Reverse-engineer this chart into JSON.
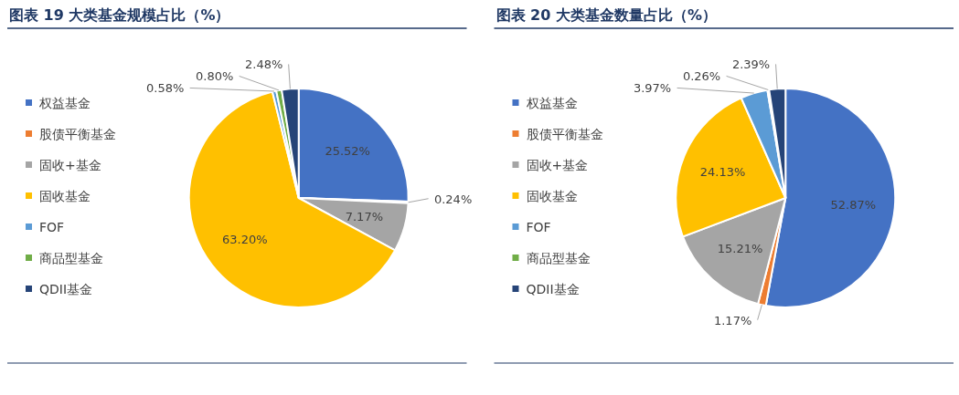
{
  "chart_data": [
    {
      "type": "pie",
      "title": "图表 19 大类基金规模占比（%）",
      "categories": [
        "权益基金",
        "股债平衡基金",
        "固收+基金",
        "固收基金",
        "FOF",
        "商品型基金",
        "QDII基金"
      ],
      "values": [
        25.52,
        0.24,
        7.17,
        63.2,
        0.58,
        0.8,
        2.48
      ],
      "value_labels": [
        "25.52%",
        "0.24%",
        "7.17%",
        "63.20%",
        "0.58%",
        "0.80%",
        "2.48%"
      ],
      "colors": [
        "#4472c4",
        "#ed7d31",
        "#a5a5a5",
        "#ffc000",
        "#5b9bd5",
        "#70ad47",
        "#264478"
      ],
      "legend": "left"
    },
    {
      "type": "pie",
      "title": "图表 20 大类基金数量占比（%）",
      "categories": [
        "权益基金",
        "股债平衡基金",
        "固收+基金",
        "固收基金",
        "FOF",
        "商品型基金",
        "QDII基金"
      ],
      "values": [
        52.87,
        1.17,
        15.21,
        24.13,
        3.97,
        0.26,
        2.39
      ],
      "value_labels": [
        "52.87%",
        "1.17%",
        "15.21%",
        "24.13%",
        "3.97%",
        "0.26%",
        "2.39%"
      ],
      "colors": [
        "#4472c4",
        "#ed7d31",
        "#a5a5a5",
        "#ffc000",
        "#5b9bd5",
        "#70ad47",
        "#264478"
      ],
      "legend": "left"
    }
  ]
}
